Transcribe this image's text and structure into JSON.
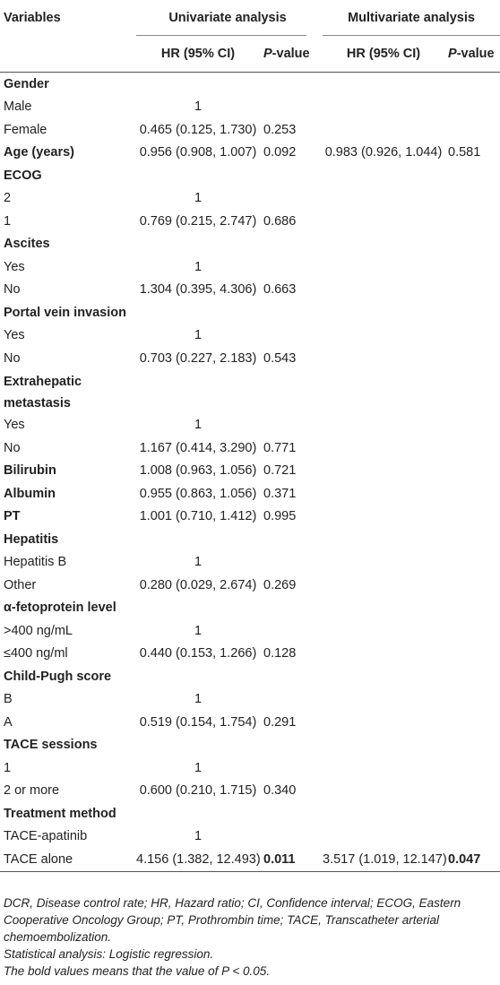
{
  "table": {
    "header": {
      "variables": "Variables",
      "univariate": "Univariate analysis",
      "multivariate": "Multivariate analysis",
      "columns": [
        null,
        "HR (95% CI)",
        "P-value",
        "HR (95% CI)",
        "P-value"
      ]
    },
    "rows": [
      {
        "cells": [
          "Gender",
          null,
          null,
          null,
          null
        ],
        "bold_label": true
      },
      {
        "cells": [
          "Male",
          "1",
          null,
          null,
          null
        ]
      },
      {
        "cells": [
          "Female",
          "0.465 (0.125, 1.730)",
          "0.253",
          null,
          null
        ]
      },
      {
        "cells": [
          "Age (years)",
          "0.956 (0.908, 1.007)",
          "0.092",
          "0.983 (0.926, 1.044)",
          "0.581"
        ],
        "bold_label": true
      },
      {
        "cells": [
          "ECOG",
          null,
          null,
          null,
          null
        ],
        "bold_label": true
      },
      {
        "cells": [
          "2",
          "1",
          null,
          null,
          null
        ]
      },
      {
        "cells": [
          "1",
          "0.769 (0.215, 2.747)",
          "0.686",
          null,
          null
        ]
      },
      {
        "cells": [
          "Ascites",
          null,
          null,
          null,
          null
        ],
        "bold_label": true
      },
      {
        "cells": [
          "Yes",
          "1",
          null,
          null,
          null
        ]
      },
      {
        "cells": [
          "No",
          "1.304 (0.395, 4.306)",
          "0.663",
          null,
          null
        ]
      },
      {
        "cells": [
          "Portal vein invasion",
          null,
          null,
          null,
          null
        ],
        "bold_label": true
      },
      {
        "cells": [
          "Yes",
          "1",
          null,
          null,
          null
        ]
      },
      {
        "cells": [
          "No",
          "0.703 (0.227, 2.183)",
          "0.543",
          null,
          null
        ]
      },
      {
        "cells": [
          "Extrahepatic metastasis",
          null,
          null,
          null,
          null
        ],
        "bold_label": true
      },
      {
        "cells": [
          "Yes",
          "1",
          null,
          null,
          null
        ]
      },
      {
        "cells": [
          "No",
          "1.167 (0.414, 3.290)",
          "0.771",
          null,
          null
        ]
      },
      {
        "cells": [
          "Bilirubin",
          "1.008 (0.963, 1.056)",
          "0.721",
          null,
          null
        ],
        "bold_label": true
      },
      {
        "cells": [
          "Albumin",
          "0.955 (0.863, 1.056)",
          "0.371",
          null,
          null
        ],
        "bold_label": true
      },
      {
        "cells": [
          "PT",
          "1.001 (0.710, 1.412)",
          "0.995",
          null,
          null
        ],
        "bold_label": true
      },
      {
        "cells": [
          "Hepatitis",
          null,
          null,
          null,
          null
        ],
        "bold_label": true
      },
      {
        "cells": [
          "Hepatitis B",
          "1",
          null,
          null,
          null
        ]
      },
      {
        "cells": [
          "Other",
          "0.280 (0.029, 2.674)",
          "0.269",
          null,
          null
        ]
      },
      {
        "cells": [
          "α-fetoprotein level",
          null,
          null,
          null,
          null
        ],
        "bold_label": true
      },
      {
        "cells": [
          ">400 ng/mL",
          "1",
          null,
          null,
          null
        ]
      },
      {
        "cells": [
          "≤400 ng/ml",
          "0.440 (0.153, 1.266)",
          "0.128",
          null,
          null
        ]
      },
      {
        "cells": [
          "Child-Pugh score",
          null,
          null,
          null,
          null
        ],
        "bold_label": true
      },
      {
        "cells": [
          "B",
          "1",
          null,
          null,
          null
        ]
      },
      {
        "cells": [
          "A",
          "0.519 (0.154, 1.754)",
          "0.291",
          null,
          null
        ]
      },
      {
        "cells": [
          "TACE sessions",
          null,
          null,
          null,
          null
        ],
        "bold_label": true
      },
      {
        "cells": [
          "1",
          "1",
          null,
          null,
          null
        ]
      },
      {
        "cells": [
          "2 or more",
          "0.600 (0.210, 1.715)",
          "0.340",
          null,
          null
        ]
      },
      {
        "cells": [
          "Treatment method",
          null,
          null,
          null,
          null
        ],
        "bold_label": true
      },
      {
        "cells": [
          "TACE-apatinib",
          "1",
          null,
          null,
          null
        ]
      },
      {
        "cells": [
          "TACE alone",
          "4.156 (1.382, 12.493)",
          "0.011",
          "3.517 (1.019, 12.147)",
          "0.047"
        ],
        "bold_cells": [
          2,
          4
        ]
      }
    ],
    "footnotes": [
      "DCR, Disease control rate; HR, Hazard ratio; CI, Confidence interval; ECOG, Eastern Cooperative Oncology Group; PT, Prothrombin time; TACE, Transcatheter arterial chemoembolization.",
      "Statistical analysis: Logistic regression.",
      "The bold values means that the value of P < 0.05."
    ]
  }
}
